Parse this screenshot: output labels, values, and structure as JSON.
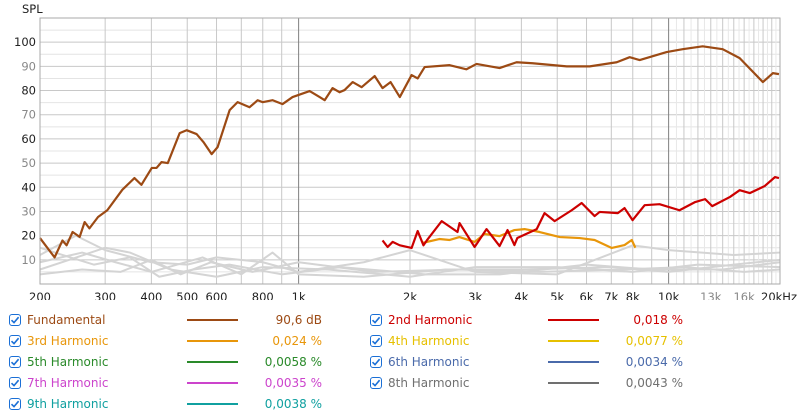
{
  "chart_data": {
    "type": "line",
    "ylabel": "SPL",
    "xscale": "log",
    "xlim": [
      200,
      20000
    ],
    "ylim": [
      0,
      110
    ],
    "grid": true,
    "yticks": [
      {
        "v": 100,
        "label": "100",
        "major": true
      },
      {
        "v": 90,
        "label": "90",
        "major": false
      },
      {
        "v": 80,
        "label": "80",
        "major": true
      },
      {
        "v": 70,
        "label": "70",
        "major": false
      },
      {
        "v": 60,
        "label": "60",
        "major": true
      },
      {
        "v": 50,
        "label": "50",
        "major": false
      },
      {
        "v": 40,
        "label": "40",
        "major": true
      },
      {
        "v": 30,
        "label": "30",
        "major": false
      },
      {
        "v": 20,
        "label": "20",
        "major": true
      },
      {
        "v": 10,
        "label": "10",
        "major": false
      }
    ],
    "xticks": [
      {
        "v": 200,
        "label": "200",
        "major": true
      },
      {
        "v": 300,
        "label": "300",
        "major": true
      },
      {
        "v": 400,
        "label": "400",
        "major": true
      },
      {
        "v": 500,
        "label": "500",
        "major": true
      },
      {
        "v": 600,
        "label": "600",
        "major": true
      },
      {
        "v": 800,
        "label": "800",
        "major": true
      },
      {
        "v": 1000,
        "label": "1k",
        "major": true
      },
      {
        "v": 2000,
        "label": "2k",
        "major": true
      },
      {
        "v": 3000,
        "label": "3k",
        "major": true
      },
      {
        "v": 4000,
        "label": "4k",
        "major": true
      },
      {
        "v": 5000,
        "label": "5k",
        "major": true
      },
      {
        "v": 6000,
        "label": "6k",
        "major": true
      },
      {
        "v": 7000,
        "label": "7k",
        "major": true
      },
      {
        "v": 8000,
        "label": "8k",
        "major": true
      },
      {
        "v": 10000,
        "label": "10k",
        "major": true
      },
      {
        "v": 13000,
        "label": "13k",
        "major": false
      },
      {
        "v": 16000,
        "label": "16k",
        "major": false
      },
      {
        "v": 20000,
        "label": "20kHz",
        "major": true
      }
    ],
    "series": [
      {
        "name": "Fundamental",
        "color": "#9c4a14",
        "points": [
          [
            200,
            19
          ],
          [
            219,
            11
          ],
          [
            230,
            18
          ],
          [
            236,
            16
          ],
          [
            245,
            21.5
          ],
          [
            256,
            19.5
          ],
          [
            264,
            25.6
          ],
          [
            272,
            23
          ],
          [
            287,
            27.7
          ],
          [
            304,
            30.5
          ],
          [
            334,
            39
          ],
          [
            360,
            43.8
          ],
          [
            376,
            41
          ],
          [
            401,
            48
          ],
          [
            413,
            48
          ],
          [
            426,
            50.4
          ],
          [
            443,
            50
          ],
          [
            477,
            62.4
          ],
          [
            498,
            63.6
          ],
          [
            530,
            62
          ],
          [
            553,
            58.7
          ],
          [
            582,
            53.7
          ],
          [
            604,
            56.6
          ],
          [
            651,
            71.9
          ],
          [
            684,
            75.2
          ],
          [
            737,
            73.1
          ],
          [
            775,
            76
          ],
          [
            799,
            75.2
          ],
          [
            851,
            76
          ],
          [
            905,
            74.4
          ],
          [
            963,
            77.3
          ],
          [
            1071,
            79.8
          ],
          [
            1140,
            77.3
          ],
          [
            1176,
            76
          ],
          [
            1235,
            81
          ],
          [
            1290,
            79.3
          ],
          [
            1331,
            80.2
          ],
          [
            1400,
            83.5
          ],
          [
            1480,
            81.4
          ],
          [
            1605,
            86
          ],
          [
            1686,
            81
          ],
          [
            1772,
            83.5
          ],
          [
            1877,
            77.3
          ],
          [
            2020,
            86.4
          ],
          [
            2098,
            85
          ],
          [
            2191,
            89.7
          ],
          [
            2559,
            90.5
          ],
          [
            2842,
            88.8
          ],
          [
            3026,
            91
          ],
          [
            3493,
            89.3
          ],
          [
            3882,
            91.7
          ],
          [
            4290,
            91.3
          ],
          [
            5305,
            90
          ],
          [
            6120,
            90
          ],
          [
            7240,
            91.7
          ],
          [
            7848,
            93.8
          ],
          [
            8352,
            92.6
          ],
          [
            9876,
            95.9
          ],
          [
            10913,
            97.1
          ],
          [
            12360,
            98.3
          ],
          [
            14000,
            97.1
          ],
          [
            15560,
            93.4
          ],
          [
            17980,
            83.5
          ],
          [
            19130,
            87.2
          ],
          [
            19870,
            86.8
          ]
        ]
      },
      {
        "name": "2nd Harmonic",
        "color": "#cc0000",
        "points": [
          [
            1686,
            18
          ],
          [
            1740,
            15.3
          ],
          [
            1795,
            17.4
          ],
          [
            1877,
            16
          ],
          [
            2020,
            14.9
          ],
          [
            2098,
            21.9
          ],
          [
            2175,
            16
          ],
          [
            2220,
            18
          ],
          [
            2436,
            26
          ],
          [
            2688,
            21.5
          ],
          [
            2722,
            25.2
          ],
          [
            2990,
            15.3
          ],
          [
            3220,
            22.7
          ],
          [
            3493,
            15.7
          ],
          [
            3670,
            22.3
          ],
          [
            3830,
            16.1
          ],
          [
            3900,
            19
          ],
          [
            4400,
            22.7
          ],
          [
            4620,
            29.3
          ],
          [
            4920,
            26
          ],
          [
            5470,
            30.5
          ],
          [
            5820,
            33.5
          ],
          [
            6310,
            28.1
          ],
          [
            6510,
            29.8
          ],
          [
            7290,
            29.3
          ],
          [
            7600,
            31.4
          ],
          [
            7990,
            26.4
          ],
          [
            8615,
            32.6
          ],
          [
            9450,
            33
          ],
          [
            10700,
            30.5
          ],
          [
            11800,
            33.9
          ],
          [
            12550,
            35.1
          ],
          [
            13120,
            32.2
          ],
          [
            14650,
            36
          ],
          [
            15560,
            38.8
          ],
          [
            16570,
            37.6
          ],
          [
            18180,
            40.5
          ],
          [
            19380,
            44.2
          ],
          [
            19870,
            43.8
          ]
        ]
      },
      {
        "name": "3rd Harmonic",
        "color": "#e8960a",
        "points": [
          [
            2150,
            16.9
          ],
          [
            2400,
            18.6
          ],
          [
            2560,
            18.2
          ],
          [
            2720,
            19.4
          ],
          [
            2990,
            17.4
          ],
          [
            3180,
            20.7
          ],
          [
            3490,
            19.8
          ],
          [
            3830,
            22.3
          ],
          [
            4080,
            22.7
          ],
          [
            4480,
            21.5
          ],
          [
            5080,
            19.4
          ],
          [
            5750,
            19
          ],
          [
            6310,
            18.2
          ],
          [
            7020,
            14.9
          ],
          [
            7600,
            16.1
          ],
          [
            7950,
            18.2
          ],
          [
            8130,
            15
          ]
        ]
      }
    ],
    "background_traces": [
      [
        [
          200,
          12
        ],
        [
          250,
          20
        ],
        [
          300,
          14
        ],
        [
          400,
          9
        ],
        [
          500,
          8
        ],
        [
          600,
          11
        ],
        [
          800,
          9
        ],
        [
          1000,
          5
        ],
        [
          1500,
          9
        ],
        [
          2000,
          14
        ],
        [
          3000,
          5
        ],
        [
          5000,
          4
        ],
        [
          8000,
          16
        ],
        [
          10000,
          14
        ],
        [
          15000,
          12
        ],
        [
          20000,
          13
        ]
      ],
      [
        [
          200,
          9
        ],
        [
          260,
          13
        ],
        [
          320,
          9
        ],
        [
          400,
          5
        ],
        [
          550,
          11
        ],
        [
          700,
          4
        ],
        [
          850,
          13
        ],
        [
          1000,
          4
        ],
        [
          1500,
          3
        ],
        [
          2500,
          6
        ],
        [
          4000,
          6
        ],
        [
          7000,
          7
        ],
        [
          10000,
          5
        ],
        [
          15000,
          8
        ],
        [
          20000,
          10
        ]
      ],
      [
        [
          200,
          6
        ],
        [
          240,
          10
        ],
        [
          300,
          15
        ],
        [
          350,
          13
        ],
        [
          450,
          6
        ],
        [
          600,
          3
        ],
        [
          800,
          7
        ],
        [
          1200,
          6
        ],
        [
          2000,
          3
        ],
        [
          3000,
          7
        ],
        [
          5000,
          7
        ],
        [
          8000,
          5
        ],
        [
          12000,
          8
        ],
        [
          20000,
          7
        ]
      ],
      [
        [
          200,
          15
        ],
        [
          230,
          12
        ],
        [
          280,
          8
        ],
        [
          350,
          11
        ],
        [
          420,
          3
        ],
        [
          520,
          6
        ],
        [
          650,
          8
        ],
        [
          900,
          4
        ],
        [
          1300,
          7
        ],
        [
          2200,
          4
        ],
        [
          3500,
          4
        ],
        [
          6000,
          8
        ],
        [
          9000,
          6
        ],
        [
          14000,
          6
        ],
        [
          20000,
          9
        ]
      ],
      [
        [
          200,
          4
        ],
        [
          260,
          6
        ],
        [
          330,
          5
        ],
        [
          400,
          10
        ],
        [
          480,
          4
        ],
        [
          580,
          9
        ],
        [
          750,
          5
        ],
        [
          1000,
          9
        ],
        [
          1600,
          5
        ],
        [
          2700,
          6
        ],
        [
          4500,
          5
        ],
        [
          7500,
          6
        ],
        [
          11000,
          7
        ],
        [
          16000,
          5
        ],
        [
          20000,
          6
        ]
      ]
    ],
    "background_color": "#d4d4d4"
  },
  "legend": [
    {
      "label": "Fundamental",
      "value": "90,6 dB",
      "color": "#9c4a14",
      "checked": true
    },
    {
      "label": "2nd Harmonic",
      "value": "0,018 %",
      "color": "#cc0000",
      "checked": true
    },
    {
      "label": "3rd Harmonic",
      "value": "0,024 %",
      "color": "#e8960a",
      "checked": true
    },
    {
      "label": "4th Harmonic",
      "value": "0,0077 %",
      "color": "#e6c000",
      "checked": true
    },
    {
      "label": "5th Harmonic",
      "value": "0,0058 %",
      "color": "#2a8a2a",
      "checked": true
    },
    {
      "label": "6th Harmonic",
      "value": "0,0034 %",
      "color": "#4a6aaa",
      "checked": true
    },
    {
      "label": "7th Harmonic",
      "value": "0,0035 %",
      "color": "#cc44cc",
      "checked": true
    },
    {
      "label": "8th Harmonic",
      "value": "0,0043 %",
      "color": "#707070",
      "checked": true
    },
    {
      "label": "9th Harmonic",
      "value": "0,0038 %",
      "color": "#10a0a0",
      "checked": true
    }
  ]
}
